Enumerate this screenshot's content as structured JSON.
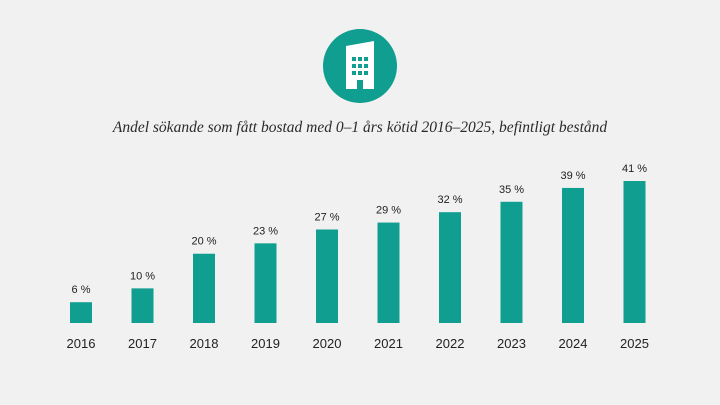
{
  "icon": {
    "name": "building-icon",
    "color": "#0f9e8f"
  },
  "chart_data": {
    "type": "bar",
    "title": "Andel sökande som fått bostad med 0–1 års kötid 2016–2025, befintligt bestånd",
    "categories": [
      "2016",
      "2017",
      "2018",
      "2019",
      "2020",
      "2021",
      "2022",
      "2023",
      "2024",
      "2025"
    ],
    "values": [
      6,
      10,
      20,
      23,
      27,
      29,
      32,
      35,
      39,
      41
    ],
    "value_labels": [
      "6 %",
      "10 %",
      "20 %",
      "23 %",
      "27 %",
      "29 %",
      "32 %",
      "35 %",
      "39 %",
      "41 %"
    ],
    "unit": "%",
    "bar_color": "#0f9e8f",
    "xlabel": "",
    "ylabel": "",
    "ylim": [
      0,
      41
    ],
    "grid": false
  }
}
